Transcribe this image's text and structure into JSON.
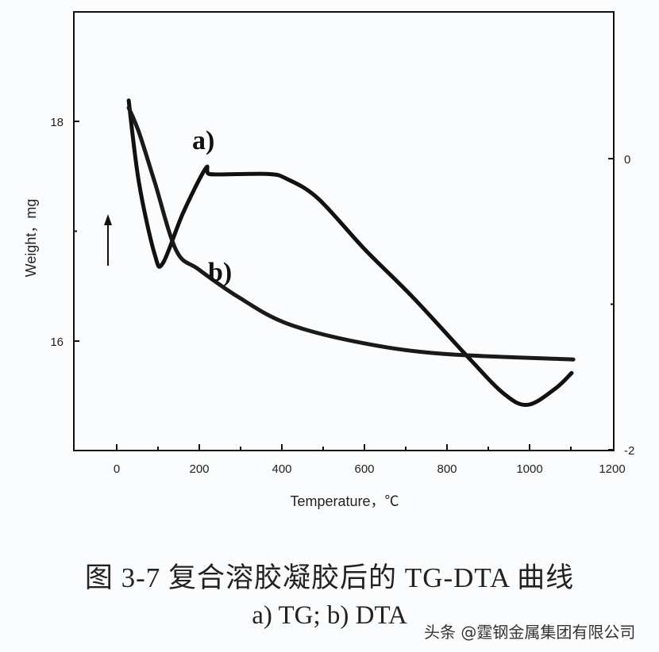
{
  "caption": {
    "main": "图 3-7  复合溶胶凝胶后的 TG-DTA 曲线",
    "sub": "a) TG;  b) DTA"
  },
  "watermark": "头条 @霆钢金属集团有限公司",
  "chart_data": {
    "type": "line",
    "title": "图 3-7 复合溶胶凝胶后的 TG-DTA 曲线",
    "xlabel": "Temperature，℃",
    "ylabel": "Weight，mg",
    "y2label": "",
    "xlim": [
      -100,
      1200
    ],
    "ylim": [
      15.0,
      19.0
    ],
    "y2lim": [
      -2,
      1.0
    ],
    "x_ticks": [
      0,
      200,
      400,
      600,
      800,
      1000,
      1200
    ],
    "y_ticks": [
      16,
      18
    ],
    "y2_ticks": [
      0,
      -2
    ],
    "grid": false,
    "legend": "inline labels a) and b)",
    "annotations": [
      "a)",
      "b)",
      "upward arrow (exo)"
    ],
    "series": [
      {
        "name": "a) TG",
        "axis": "left",
        "label": "a)",
        "x": [
          29,
          54,
          92,
          112,
          160,
          215,
          225,
          294,
          371,
          410,
          487,
          602,
          717,
          852,
          938,
          996,
          1063,
          1102
        ],
        "values": [
          18.19,
          17.44,
          16.79,
          16.71,
          17.16,
          17.57,
          17.52,
          17.52,
          17.52,
          17.48,
          17.3,
          16.83,
          16.4,
          15.85,
          15.52,
          15.42,
          15.57,
          15.71
        ]
      },
      {
        "name": "b) DTA",
        "axis": "right",
        "label": "b)",
        "x": [
          29,
          54,
          92,
          144,
          198,
          294,
          410,
          583,
          785,
          1106
        ],
        "values": [
          0.35,
          0.18,
          -0.16,
          -0.63,
          -0.76,
          -0.95,
          -1.13,
          -1.26,
          -1.34,
          -1.38
        ]
      }
    ]
  }
}
